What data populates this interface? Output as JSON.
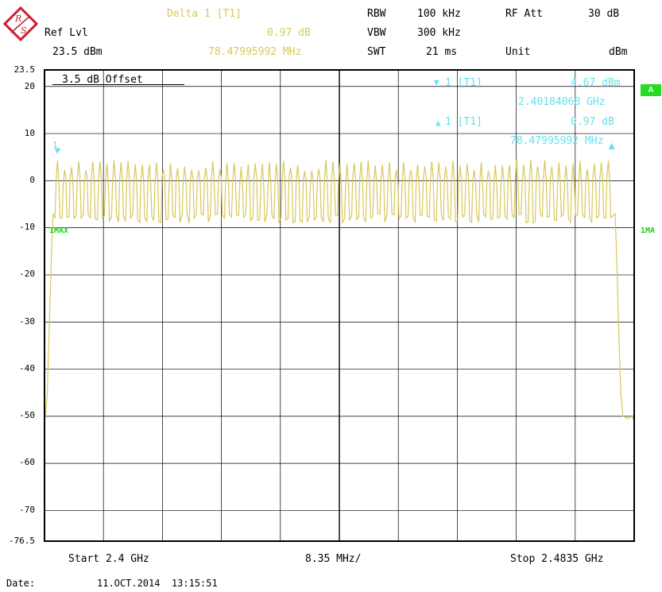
{
  "header": {
    "ref_lvl_label": "Ref Lvl",
    "ref_lvl_value": "23.5 dBm",
    "delta_title": "Delta 1 [T1]",
    "delta_level": "0.97 dB",
    "delta_freq": "78.47995992 MHz",
    "rbw_label": "RBW",
    "rbw_value": "100 kHz",
    "vbw_label": "VBW",
    "vbw_value": "300 kHz",
    "swt_label": "SWT",
    "swt_value": "21 ms",
    "rfatt_label": "RF Att",
    "rfatt_value": "30 dB",
    "unit_label": "Unit",
    "unit_value": "dBm"
  },
  "plot": {
    "offset_label": "3.5 dB Offset",
    "marker1_title": "1 [T1]",
    "marker1_level": "4.67 dBm",
    "marker1_freq": "2.40184068 GHz",
    "delta1_title": "1 [T1]",
    "delta1_level": "0.97 dB",
    "delta1_freq": "78.47995992 MHz",
    "side_badge": "A",
    "trace_label_left": "1MAX",
    "trace_label_right": "1MA",
    "marker_number": "1"
  },
  "footer": {
    "start": "Start 2.4 GHz",
    "div": "8.35 MHz/",
    "stop": "Stop 2.4835 GHz",
    "date_label": "Date:",
    "date_value": "11.OCT.2014  13:15:51"
  },
  "colors": {
    "trace": "#d8c85a",
    "marker": "#66e0ee",
    "label": "#22cc22"
  },
  "chart_data": {
    "type": "line",
    "x_unit": "GHz",
    "y_unit": "dBm",
    "xlim": [
      2.4,
      2.4835
    ],
    "ylim": [
      -76.5,
      23.5
    ],
    "yticks": [
      "23.5",
      "20",
      "10",
      "0",
      "-10",
      "-20",
      "-30",
      "-40",
      "-50",
      "-60",
      "-70",
      "-76.5"
    ],
    "yticks_values": [
      23.5,
      20,
      10,
      0,
      -10,
      -20,
      -30,
      -40,
      -50,
      -60,
      -70,
      -76.5
    ],
    "grid": true,
    "hopping_channels": 79,
    "channel_peak_dbm": 4.5,
    "channel_valley_dbm": -7,
    "band_edge_floor_dbm": -50,
    "marker1": {
      "x": 2.40184068,
      "y": 4.67
    },
    "delta1": {
      "dx_mhz": 78.47995992,
      "dy_db": 0.97
    }
  }
}
